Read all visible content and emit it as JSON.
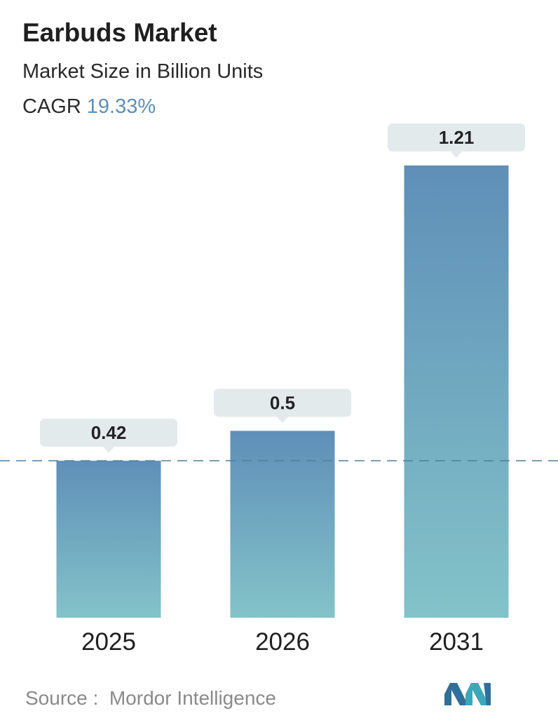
{
  "header": {
    "title": "Earbuds Market",
    "subtitle": "Market Size in Billion Units",
    "cagr_label": "CAGR",
    "cagr_value": "19.33%"
  },
  "chart_data": {
    "type": "bar",
    "categories": [
      "2025",
      "2026",
      "2031"
    ],
    "values": [
      0.42,
      0.5,
      1.21
    ],
    "value_labels": [
      "0.42",
      "0.5",
      "1.21"
    ],
    "title": "Earbuds Market",
    "subtitle": "Market Size in Billion Units",
    "xlabel": "",
    "ylabel": "",
    "ylim": [
      0,
      1.21
    ],
    "grid": false,
    "reference_line": 0.42,
    "colors": {
      "bar_top": "#5f8fb8",
      "bar_bottom": "#83c3c9",
      "label_bg": "#e3eaec",
      "reference_line": "#4f7f97"
    }
  },
  "footer": {
    "source_label": "Source :",
    "source_value": "Mordor Intelligence",
    "logo": "mordor-intelligence-logo"
  }
}
